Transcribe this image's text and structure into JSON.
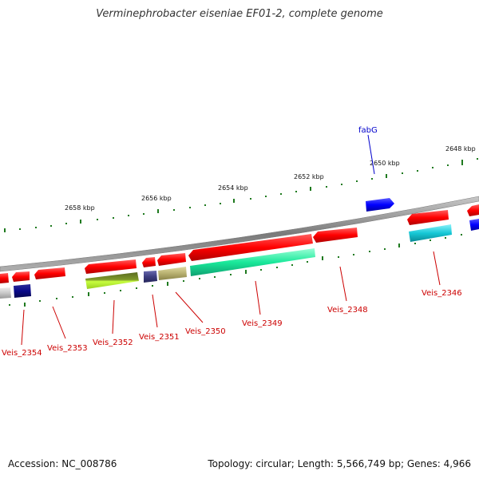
{
  "title": "Verminephrobacter eiseniae EF01-2, complete genome",
  "footer": {
    "accession": "Accession: NC_008786",
    "summary": "Topology: circular; Length: 5,566,749 bp; Genes: 4,966"
  },
  "scale": {
    "labels": [
      "2658 kbp",
      "2656 kbp",
      "2654 kbp",
      "2652 kbp",
      "2650 kbp",
      "2648 kbp"
    ]
  },
  "genes": [
    {
      "label": "Veis_2354",
      "color": "#0a0a8a"
    },
    {
      "label": "Veis_2353",
      "color": "#ff0000"
    },
    {
      "label": "Veis_2352",
      "color": "#a8e02a"
    },
    {
      "label": "Veis_2351",
      "color": "#3d3d80"
    },
    {
      "label": "Veis_2350",
      "color": "#b8b070"
    },
    {
      "label": "Veis_2349",
      "color": "#1ae89a"
    },
    {
      "label": "Veis_2348",
      "color": "#ff0000"
    },
    {
      "label": "Veis_2346",
      "color": "#16c8d6"
    },
    {
      "label": "fabG",
      "color": "#0000ff"
    }
  ],
  "colors": {
    "forward_gene": "#ff0000",
    "backbone": "#8c8c8c",
    "tick": "#1f7a1f"
  }
}
